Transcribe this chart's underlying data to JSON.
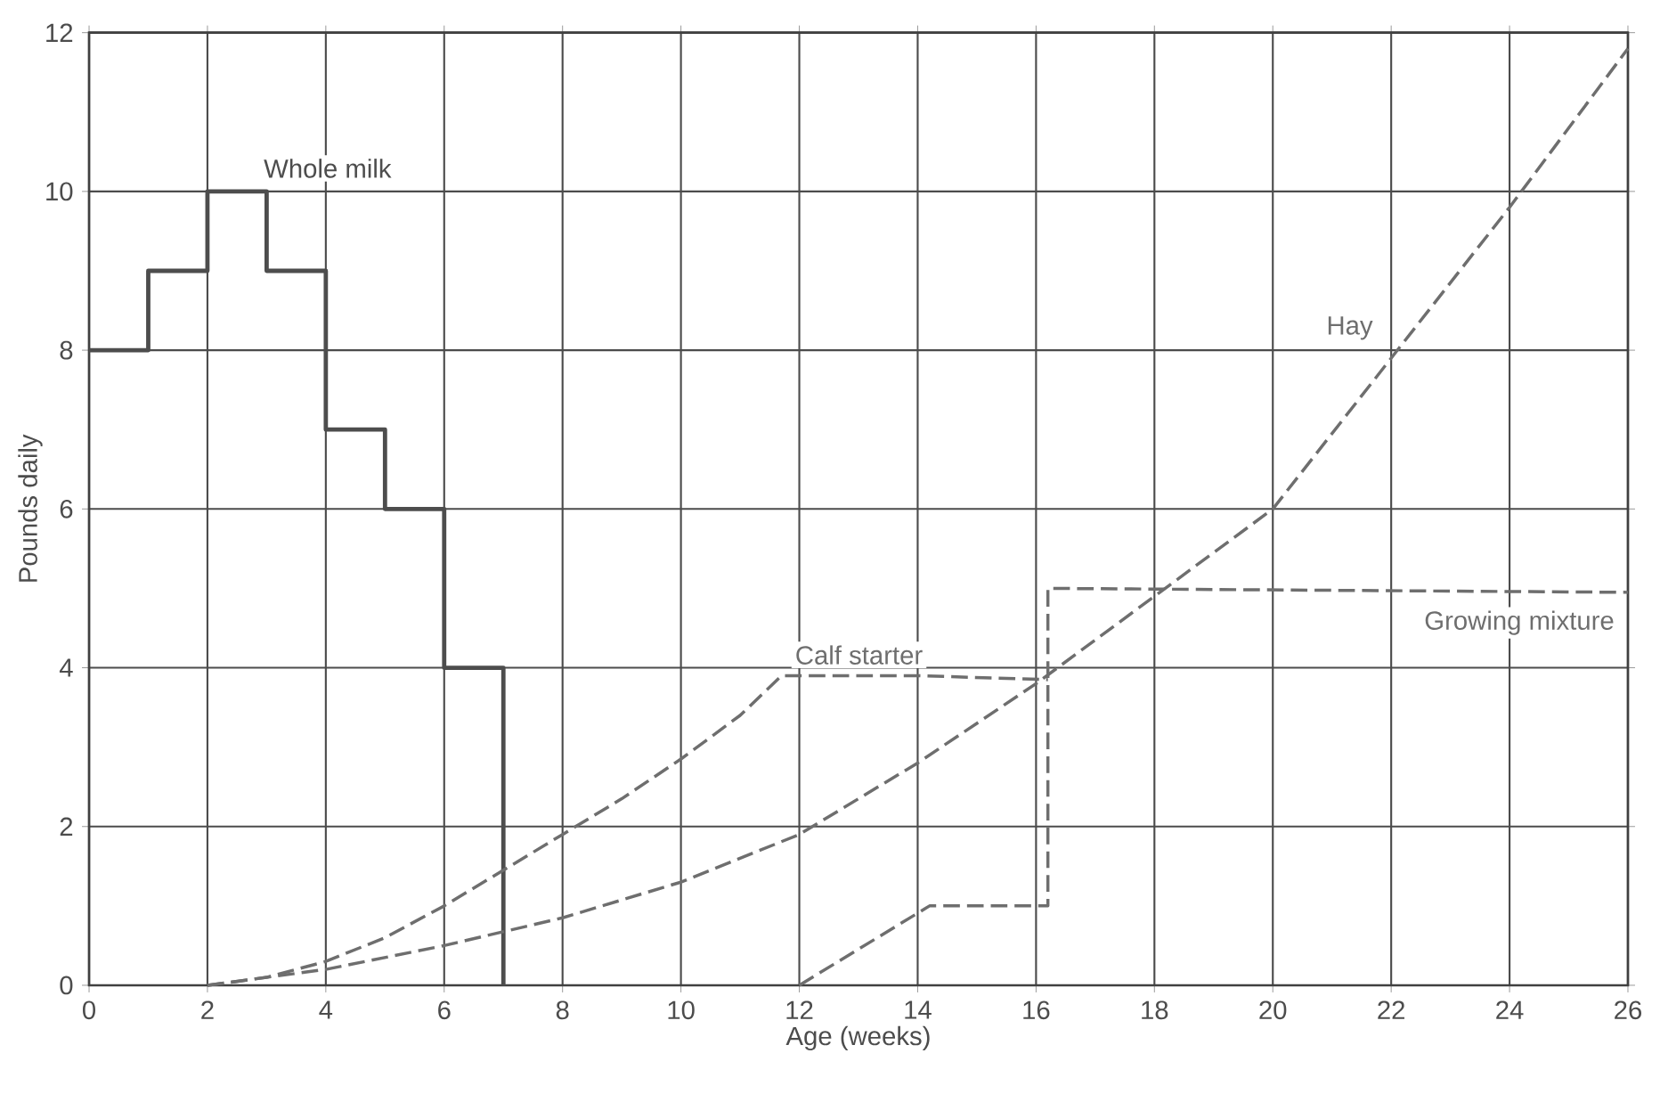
{
  "chart_data": {
    "type": "line",
    "xlabel": "Age (weeks)",
    "ylabel": "Pounds daily",
    "xlim": [
      0,
      26
    ],
    "ylim": [
      0,
      12
    ],
    "xticks": [
      0,
      2,
      4,
      6,
      8,
      10,
      12,
      14,
      16,
      18,
      20,
      22,
      24,
      26
    ],
    "yticks": [
      0,
      2,
      4,
      6,
      8,
      10,
      12
    ],
    "grid": true,
    "series": [
      {
        "name": "Whole milk",
        "type": "step",
        "color": "#4d4d4d",
        "line_style": "solid",
        "x": [
          0,
          1,
          2,
          3,
          4,
          5,
          6,
          7
        ],
        "values": [
          8,
          9,
          10,
          9,
          7,
          6,
          4,
          0
        ]
      },
      {
        "name": "Calf starter",
        "color": "#6e6e6e",
        "line_style": "dashed",
        "x": [
          2,
          3,
          4,
          5,
          6,
          7,
          8,
          9,
          10,
          11,
          11.7,
          14,
          16.2
        ],
        "values": [
          0,
          0.1,
          0.3,
          0.6,
          1.0,
          1.45,
          1.9,
          2.35,
          2.85,
          3.4,
          3.9,
          3.9,
          3.85
        ]
      },
      {
        "name": "Hay",
        "color": "#6e6e6e",
        "line_style": "dashed",
        "x": [
          2,
          4,
          6,
          8,
          10,
          12,
          14,
          16,
          18,
          20,
          22,
          24,
          26
        ],
        "values": [
          0,
          0.2,
          0.5,
          0.85,
          1.3,
          1.9,
          2.8,
          3.8,
          4.9,
          6.0,
          7.9,
          9.8,
          11.8
        ]
      },
      {
        "name": "Growing mixture",
        "color": "#6e6e6e",
        "line_style": "dashed",
        "x": [
          12,
          14.2,
          16.2,
          16.2,
          26
        ],
        "values": [
          0,
          1,
          1,
          5,
          4.95
        ]
      }
    ]
  }
}
